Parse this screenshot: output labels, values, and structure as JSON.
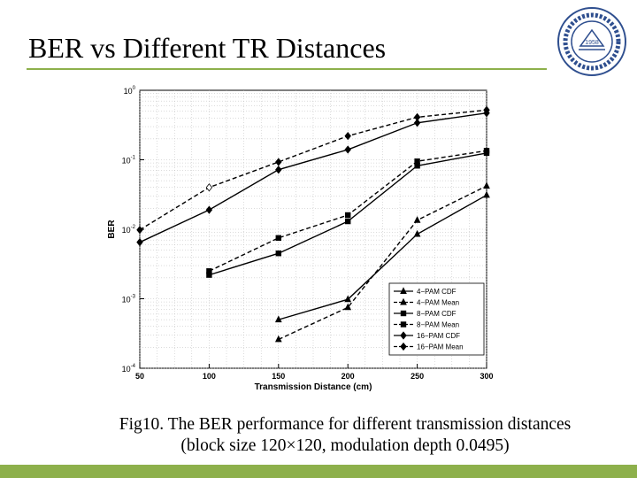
{
  "slide": {
    "title": "BER vs Different TR Distances",
    "accent_color": "#8db04b",
    "logo_icon": "university-seal-icon",
    "logo_text": "1958"
  },
  "caption": {
    "line1": "Fig10. The BER performance for different transmission distances",
    "line2": "(block size 120×120, modulation depth 0.0495)"
  },
  "chart_data": {
    "type": "line",
    "xlabel": "Transmission Distance (cm)",
    "ylabel": "BER",
    "x_ticks": [
      50,
      100,
      150,
      200,
      250,
      300
    ],
    "y_scale": "log",
    "xlim": [
      50,
      300
    ],
    "ylim": [
      0.0001,
      1
    ],
    "y_ticks": [
      {
        "mant": "10",
        "exp": "0"
      },
      {
        "mant": "10",
        "exp": "-1"
      },
      {
        "mant": "10",
        "exp": "-2"
      },
      {
        "mant": "10",
        "exp": "-3"
      },
      {
        "mant": "10",
        "exp": "-4"
      }
    ],
    "grid": true,
    "legend_position": "bottom-right",
    "series": [
      {
        "name": "4−PAM CDF",
        "marker": "triangle",
        "dash": false,
        "x": [
          150,
          200,
          250,
          300
        ],
        "y": [
          0.0005,
          0.00098,
          0.0085,
          0.031
        ]
      },
      {
        "name": "4−PAM Mean",
        "marker": "triangle",
        "dash": true,
        "x": [
          150,
          200,
          250,
          300
        ],
        "y": [
          0.00026,
          0.00075,
          0.0135,
          0.042
        ]
      },
      {
        "name": "8−PAM CDF",
        "marker": "square",
        "dash": false,
        "x": [
          100,
          150,
          200,
          250,
          300
        ],
        "y": [
          0.0022,
          0.0045,
          0.013,
          0.082,
          0.125
        ]
      },
      {
        "name": "8−PAM Mean",
        "marker": "square",
        "dash": true,
        "x": [
          100,
          150,
          200,
          250,
          300
        ],
        "y": [
          0.0025,
          0.0075,
          0.016,
          0.095,
          0.135
        ]
      },
      {
        "name": "16−PAM CDF",
        "marker": "diamond",
        "dash": false,
        "x": [
          50,
          100,
          150,
          200,
          250,
          300
        ],
        "y": [
          0.0065,
          0.019,
          0.072,
          0.14,
          0.34,
          0.47
        ]
      },
      {
        "name": "16−PAM Mean",
        "marker": "diamond",
        "dash": true,
        "x": [
          50,
          100,
          150,
          200,
          250,
          300
        ],
        "y": [
          0.0098,
          0.04,
          0.093,
          0.22,
          0.41,
          0.52
        ]
      }
    ]
  }
}
